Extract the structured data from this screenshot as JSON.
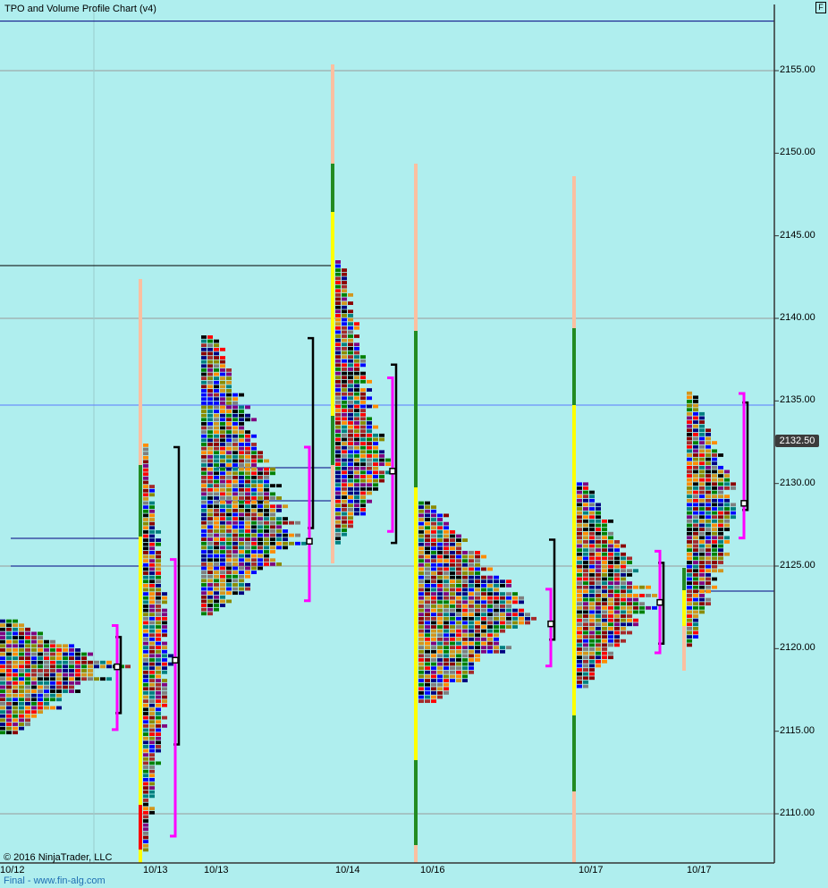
{
  "title": "TPO and Volume Profile Chart (v4)",
  "copyright": "© 2016 NinjaTrader, LLC",
  "footer": "Final - www.fin-alg.com",
  "flag_button": "F",
  "chart_data": {
    "type": "tpo_profile",
    "background": "#afeeee",
    "ylim": [
      2107,
      2159
    ],
    "y_ticks": [
      "2155.00",
      "2150.00",
      "2145.00",
      "2140.00",
      "2135.00",
      "2130.00",
      "2125.00",
      "2120.00",
      "2115.00",
      "2110.00"
    ],
    "x_ticks": [
      "10/12",
      "10/13",
      "10/13",
      "10/14",
      "10/16",
      "10/17",
      "10/17"
    ],
    "last_price": "2132.50",
    "reference_lines": [
      {
        "price": 2158.0,
        "color": "#000080"
      },
      {
        "price": 2134.75,
        "color": "#5b7bff"
      }
    ],
    "tpo_colors": [
      "#0000ff",
      "#a52a2a",
      "#8b8b00",
      "#008000",
      "#ff0000",
      "#008080",
      "#d2961e",
      "#808080",
      "#000000",
      "#000080",
      "#800080",
      "#ff8c00",
      "#8b0000"
    ],
    "value_area_color": "#ff00ff",
    "profiles": [
      {
        "low": 2114.9,
        "high": 2121.65,
        "poc": 2118.9,
        "max_tpo": 20,
        "va": [
          2115.1,
          2121.4
        ],
        "ib": [
          2116.1,
          2120.7
        ]
      },
      {
        "low": 2107.8,
        "high": 2132.4,
        "poc": 2119.3,
        "max_tpo": 5,
        "va": [
          2108.65,
          2125.4
        ],
        "ib": [
          2114.2,
          2132.2
        ]
      },
      {
        "low": 2122.1,
        "high": 2138.9,
        "poc": 2126.5,
        "max_tpo": 17,
        "va": [
          2122.9,
          2132.2
        ],
        "ib": [
          2127.3,
          2138.8
        ]
      },
      {
        "low": 2126.4,
        "high": 2143.4,
        "poc": 2130.75,
        "max_tpo": 9,
        "va": [
          2127.1,
          2136.4
        ],
        "ib": [
          2126.4,
          2137.2
        ]
      },
      {
        "low": 2116.8,
        "high": 2128.85,
        "poc": 2121.5,
        "max_tpo": 20,
        "va": [
          2118.95,
          2123.6
        ],
        "ib": [
          2120.55,
          2126.6
        ]
      },
      {
        "low": 2117.7,
        "high": 2130.0,
        "poc": 2122.8,
        "max_tpo": 13,
        "va": [
          2119.75,
          2125.9
        ],
        "ib": [
          2120.3,
          2125.2
        ]
      },
      {
        "low": 2120.2,
        "high": 2135.6,
        "poc": 2128.8,
        "max_tpo": 9,
        "va": [
          2126.7,
          2135.45
        ],
        "ib": [
          2128.4,
          2134.9
        ]
      }
    ]
  }
}
